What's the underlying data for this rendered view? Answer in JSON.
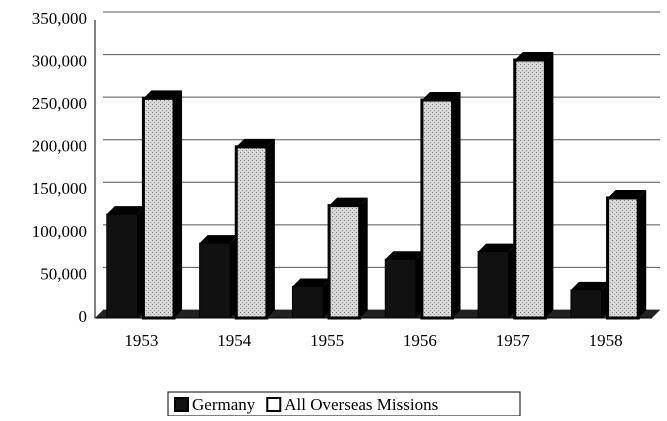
{
  "chart_data": {
    "type": "bar",
    "categories": [
      "1953",
      "1954",
      "1955",
      "1956",
      "1957",
      "1958"
    ],
    "series": [
      {
        "name": "Germany",
        "color": "#111111",
        "values": [
          122000,
          88000,
          37000,
          69000,
          78000,
          33000
        ]
      },
      {
        "name": "All Overseas Missions",
        "color": "#c8c8c8",
        "values": [
          258000,
          201000,
          132000,
          256000,
          303000,
          141000
        ]
      }
    ],
    "ylim": [
      0,
      350000
    ],
    "yticks": [
      0,
      {
        "value": 50000,
        "label": "50,000"
      },
      {
        "value": 100000,
        "label": "100,000"
      },
      {
        "value": 150000,
        "label": "150,000"
      },
      {
        "value": 200000,
        "label": "200,000"
      },
      {
        "value": 250000,
        "label": "250,000"
      },
      {
        "value": 300000,
        "label": "300,000"
      },
      {
        "value": 350000,
        "label": "350,000"
      }
    ],
    "grid": true,
    "legend": "bottom"
  }
}
